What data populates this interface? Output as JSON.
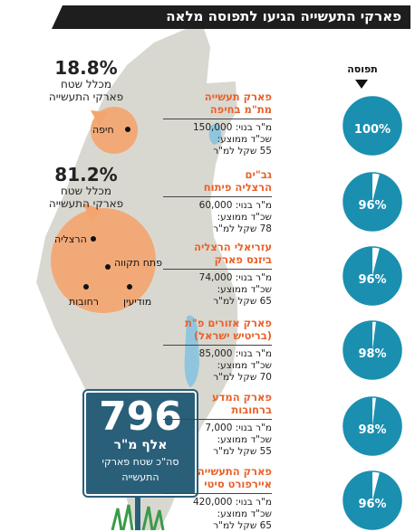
{
  "title": "פארקי התעשייה הגיעו לתפוסה מלאה",
  "occupancy_header": "תפוסה",
  "regions": [
    {
      "pct": "18.8%",
      "line1": "מכלל שטח",
      "line2": "פארקי התעשייה"
    },
    {
      "pct": "81.2%",
      "line1": "מכלל שטח",
      "line2": "פארקי התעשייה"
    }
  ],
  "cities": [
    "חיפה",
    "הרצליה",
    "פתח תקווה",
    "רחובות",
    "מודיעין"
  ],
  "total": {
    "value": "796",
    "unit": "אלף מ\"ר",
    "caption1": "סה\"כ שטח פארקי",
    "caption2": "התעשייה"
  },
  "colors": {
    "accent": "#e8622a",
    "pie": "#1b8fb0",
    "sign": "#2a5f7a",
    "map": "#d9d8d0",
    "sea": "#8fc6de"
  },
  "parks": [
    {
      "name1": "פארק תעשייה",
      "name2": "מת\"מ בחיפה",
      "area": "מ\"ר בנוי: 150,000",
      "rent1": "שכ\"ד ממוצע:",
      "rent2": "55 שקל למ\"ר",
      "occupancy": 100,
      "occupancy_label": "100%"
    },
    {
      "name1": "גב\"ים",
      "name2": "הרצליה פיתוח",
      "area": "מ\"ר בנוי: 60,000",
      "rent1": "שכ\"ד ממוצע:",
      "rent2": "78 שקל למ\"ר",
      "occupancy": 96,
      "occupancy_label": "96%"
    },
    {
      "name1": "עזריאלי הרצליה",
      "name2": "ביזנס פארק",
      "area": "מ\"ר בנוי: 74,000",
      "rent1": "שכ\"ד ממוצע:",
      "rent2": "65 שקל למ\"ר",
      "occupancy": 96,
      "occupancy_label": "96%"
    },
    {
      "name1": "פארק אזורים פ\"ת",
      "name2": "(בריטיש ישראל)",
      "area": "מ\"ר בנוי: 85,000",
      "rent1": "שכ\"ד ממוצע:",
      "rent2": "70 שקל למ\"ר",
      "occupancy": 98,
      "occupancy_label": "98%"
    },
    {
      "name1": "פארק המדע",
      "name2": "ברחובות",
      "area": "מ\"ר בנוי: 7,000",
      "rent1": "שכ\"ד ממוצע:",
      "rent2": "55 שקל למ\"ר",
      "occupancy": 98,
      "occupancy_label": "98%"
    },
    {
      "name1": "פארק התעשייה",
      "name2": "איירפורט סיטי",
      "area": "מ\"ר בנוי: 420,000",
      "rent1": "שכ\"ד ממוצע:",
      "rent2": "65 שקל למ\"ר",
      "occupancy": 96,
      "occupancy_label": "96%"
    }
  ]
}
